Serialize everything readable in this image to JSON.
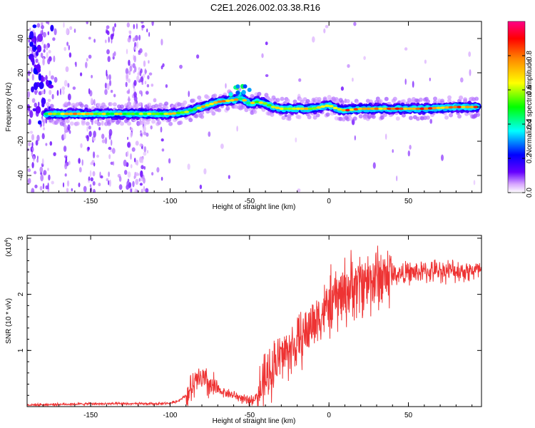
{
  "title": "C2E1.2026.002.03.38.R16",
  "chart_data": [
    {
      "type": "heatmap",
      "title": "C2E1.2026.002.03.38.R16",
      "xlabel": "Height of straight line (km)",
      "ylabel": "Frequency (Hz)",
      "xlim": [
        -190,
        96
      ],
      "ylim": [
        -50,
        50
      ],
      "x_ticks": [
        "-150",
        "-100",
        "-50",
        "0",
        "50"
      ],
      "y_ticks": [
        "40",
        "20",
        "0",
        "-20",
        "-40"
      ],
      "x_tick_values": [
        -150,
        -100,
        -50,
        0,
        50
      ],
      "y_tick_values": [
        40,
        20,
        0,
        -20,
        -40
      ],
      "ridge": {
        "x": [
          -178,
          -160,
          -140,
          -120,
          -100,
          -90,
          -80,
          -70,
          -60,
          -55,
          -50,
          -45,
          -40,
          -35,
          -30,
          -20,
          -10,
          -5,
          0,
          5,
          10,
          20,
          40,
          60,
          80,
          94
        ],
        "freq": [
          -4,
          -4,
          -4,
          -4,
          -4,
          -3,
          0,
          3,
          4,
          5,
          2,
          3,
          2,
          0,
          -1,
          -1,
          -1,
          0,
          1,
          -1,
          -2,
          -1,
          -1,
          -1,
          0,
          0
        ],
        "amplitude": [
          0.55,
          0.6,
          0.55,
          0.55,
          0.6,
          0.55,
          0.55,
          0.65,
          0.6,
          0.5,
          0.5,
          0.55,
          0.55,
          0.6,
          0.6,
          0.65,
          0.6,
          0.55,
          0.7,
          0.6,
          0.7,
          0.75,
          0.7,
          0.75,
          0.75,
          0.7
        ]
      },
      "colorbar": {
        "label": "Normalized spectral amplitude",
        "range": [
          0,
          1
        ],
        "ticks": [
          "0.0",
          "0.2",
          "0.4",
          "0.6",
          "0.8"
        ],
        "tick_values": [
          0,
          0.2,
          0.4,
          0.6,
          0.8
        ],
        "colors": [
          "#ffffff",
          "#d7a6ff",
          "#6600ff",
          "#0000ff",
          "#00ffff",
          "#00ff00",
          "#ffff00",
          "#ff8800",
          "#ff0000",
          "#ff0088"
        ]
      }
    },
    {
      "type": "line",
      "xlabel": "Height of straight line (km)",
      "ylabel": "SNR (10 * v/v)",
      "scale_label": "(x10",
      "scale_exp": "4",
      "scale_close": ")",
      "xlim": [
        -190,
        96
      ],
      "ylim": [
        0,
        3.05
      ],
      "x_ticks": [
        "-150",
        "-100",
        "-50",
        "0",
        "50"
      ],
      "y_ticks": [
        "3",
        "2",
        "1"
      ],
      "x_tick_values": [
        -150,
        -100,
        -50,
        0,
        50
      ],
      "y_tick_values": [
        3,
        2,
        1
      ],
      "line_color": "#ee3333",
      "envelope": {
        "x": [
          -190,
          -150,
          -110,
          -100,
          -95,
          -90,
          -85,
          -82,
          -78,
          -74,
          -70,
          -65,
          -60,
          -55,
          -52,
          -48,
          -45,
          -42,
          -38,
          -35,
          -30,
          -25,
          -20,
          -15,
          -10,
          -5,
          0,
          10,
          20,
          30,
          40,
          50,
          60,
          70,
          80,
          96
        ],
        "y": [
          0.03,
          0.05,
          0.05,
          0.06,
          0.1,
          0.2,
          0.35,
          0.5,
          0.45,
          0.35,
          0.3,
          0.25,
          0.2,
          0.15,
          0.1,
          0.12,
          0.2,
          0.35,
          0.55,
          0.75,
          0.9,
          1.0,
          1.1,
          1.3,
          1.5,
          1.65,
          1.8,
          2.05,
          2.2,
          2.3,
          2.35,
          2.38,
          2.4,
          2.42,
          2.42,
          2.42
        ]
      }
    }
  ]
}
